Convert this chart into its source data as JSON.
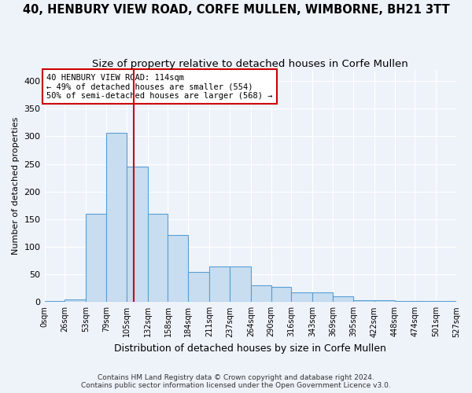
{
  "title": "40, HENBURY VIEW ROAD, CORFE MULLEN, WIMBORNE, BH21 3TT",
  "subtitle": "Size of property relative to detached houses in Corfe Mullen",
  "xlabel": "Distribution of detached houses by size in Corfe Mullen",
  "ylabel": "Number of detached properties",
  "bin_edges": [
    0,
    26,
    53,
    79,
    105,
    132,
    158,
    184,
    211,
    237,
    264,
    290,
    316,
    343,
    369,
    395,
    422,
    448,
    474,
    501,
    527
  ],
  "bar_heights": [
    2,
    5,
    160,
    307,
    245,
    160,
    122,
    55,
    65,
    65,
    30,
    28,
    17,
    17,
    10,
    3,
    3,
    2,
    2,
    2
  ],
  "bar_color": "#c8ddf0",
  "bar_edge_color": "#5a9fd4",
  "property_size": 114,
  "vline_x": 114,
  "vline_color": "#cc0000",
  "annotation_line1": "40 HENBURY VIEW ROAD: 114sqm",
  "annotation_line2": "← 49% of detached houses are smaller (554)",
  "annotation_line3": "50% of semi-detached houses are larger (568) →",
  "annotation_box_color": "#cc0000",
  "footnote1": "Contains HM Land Registry data © Crown copyright and database right 2024.",
  "footnote2": "Contains public sector information licensed under the Open Government Licence v3.0.",
  "ylim": [
    0,
    420
  ],
  "yticks": [
    0,
    50,
    100,
    150,
    200,
    250,
    300,
    350,
    400
  ],
  "background_color": "#eef3fa",
  "grid_color": "#ffffff",
  "title_fontsize": 10.5,
  "subtitle_fontsize": 9.5
}
